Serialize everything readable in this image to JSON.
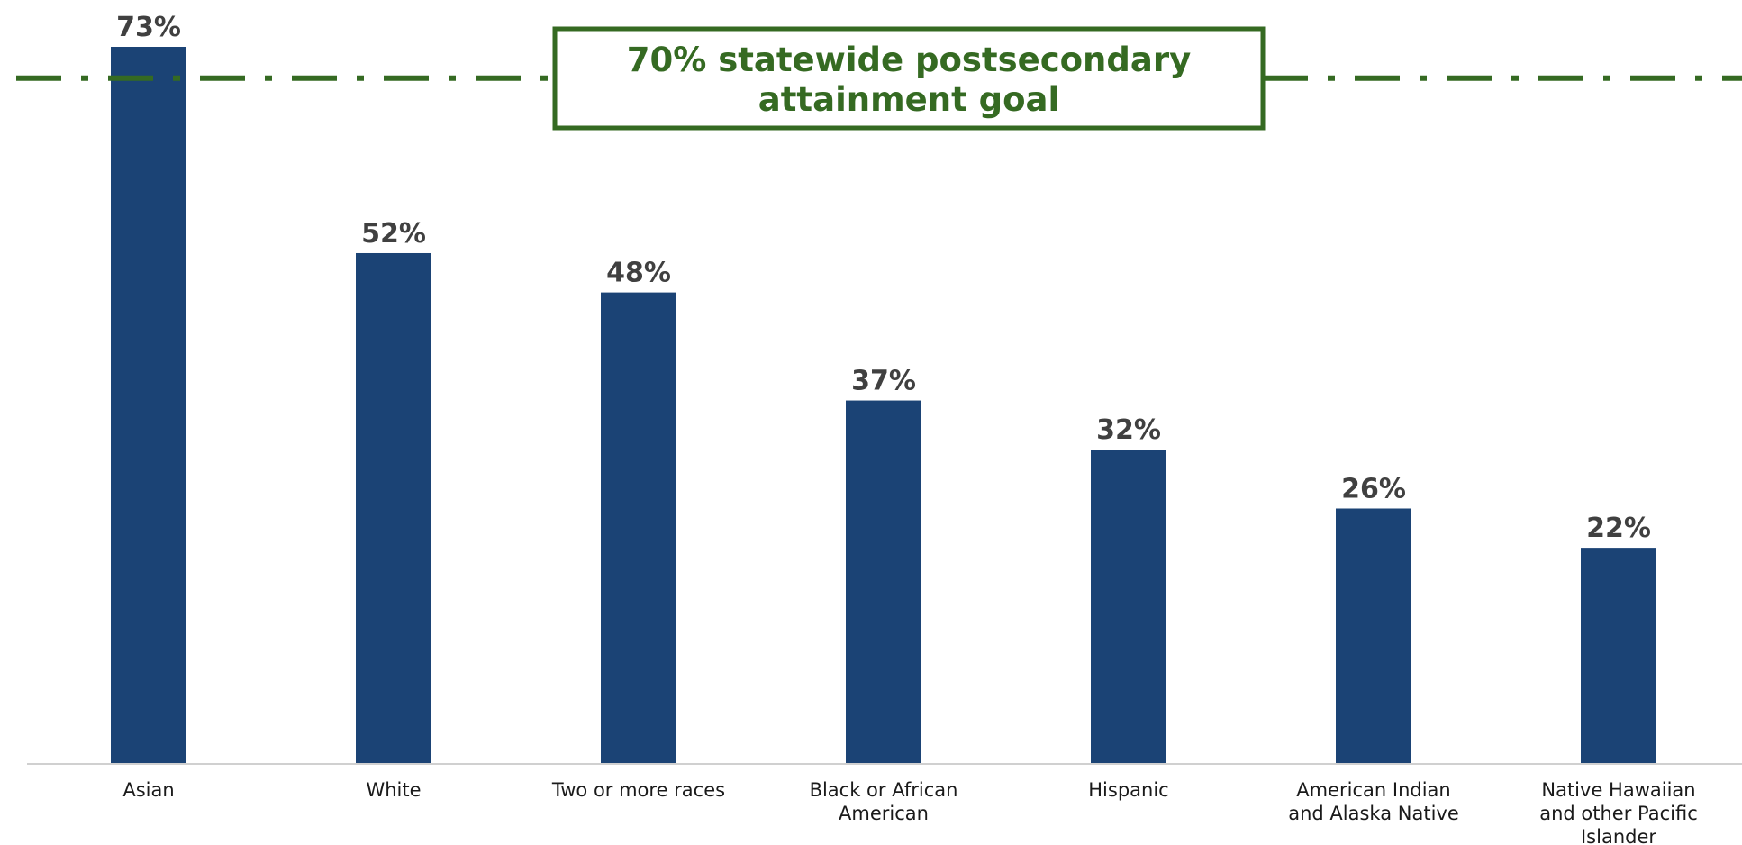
{
  "chart_data": {
    "type": "bar",
    "categories": [
      [
        "Asian"
      ],
      [
        "White"
      ],
      [
        "Two or more races"
      ],
      [
        "Black or African",
        "American"
      ],
      [
        "Hispanic"
      ],
      [
        "American Indian",
        "and Alaska Native"
      ],
      [
        "Native Hawaiian",
        "and other Pacific",
        "Islander"
      ]
    ],
    "values": [
      73,
      52,
      48,
      37,
      32,
      26,
      22
    ],
    "value_labels": [
      "73%",
      "52%",
      "48%",
      "37%",
      "32%",
      "26%",
      "22%"
    ],
    "ylim": [
      0,
      73
    ],
    "grid": false,
    "colors": {
      "bar": "#1b4375",
      "goal": "#356a22",
      "label": "#404040"
    },
    "reference_line": {
      "value": 70,
      "label_lines": [
        "70% statewide postsecondary",
        "attainment goal"
      ]
    }
  }
}
